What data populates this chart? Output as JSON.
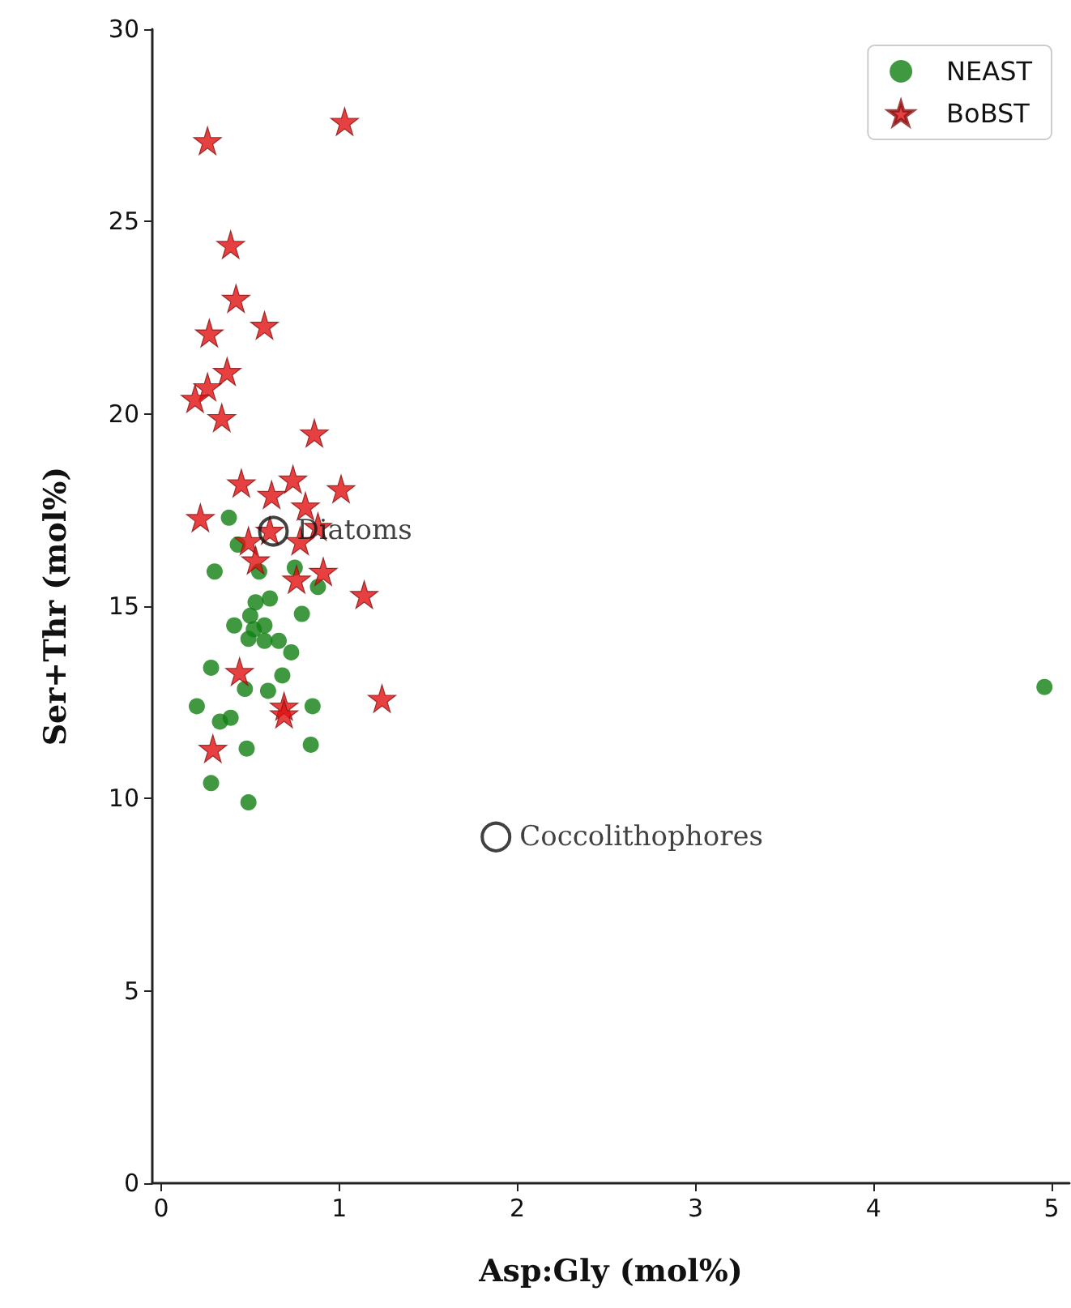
{
  "chart_data": {
    "type": "scatter",
    "xlabel": "Asp:Gly (mol%)",
    "ylabel": "Ser+Thr (mol%)",
    "xlim": [
      -0.05,
      5.1
    ],
    "ylim": [
      0,
      30
    ],
    "xticks": [
      0,
      1,
      2,
      3,
      4,
      5
    ],
    "yticks": [
      0,
      5,
      10,
      15,
      20,
      25,
      30
    ],
    "grid": false,
    "legend": "top right",
    "series": [
      {
        "name": "NEAST",
        "color": "#108010",
        "marker": "circle",
        "x": [
          0.38,
          0.43,
          0.3,
          0.55,
          0.75,
          0.88,
          0.61,
          0.53,
          0.79,
          0.41,
          0.5,
          0.52,
          0.58,
          0.49,
          0.58,
          0.66,
          0.73,
          0.28,
          0.68,
          0.47,
          0.6,
          0.2,
          0.39,
          0.33,
          0.85,
          0.84,
          0.48,
          0.28,
          0.49,
          4.96
        ],
        "values": [
          17.3,
          16.6,
          15.9,
          15.9,
          16.0,
          15.5,
          15.2,
          15.1,
          14.8,
          14.5,
          14.75,
          14.4,
          14.5,
          14.15,
          14.1,
          14.1,
          13.8,
          13.4,
          13.2,
          12.85,
          12.8,
          12.4,
          12.1,
          12.0,
          12.4,
          11.4,
          11.3,
          10.4,
          9.9,
          12.9
        ]
      },
      {
        "name": "BoBST",
        "color": "#e01010",
        "marker": "star",
        "x": [
          0.26,
          1.03,
          0.39,
          0.42,
          0.58,
          0.27,
          0.37,
          0.26,
          0.19,
          0.34,
          0.86,
          0.45,
          0.74,
          1.01,
          0.62,
          0.81,
          0.22,
          0.88,
          0.61,
          0.78,
          0.49,
          0.53,
          0.91,
          0.76,
          1.14,
          0.44,
          1.24,
          0.69,
          0.69,
          0.29
        ],
        "values": [
          27.1,
          27.6,
          24.4,
          23.0,
          22.3,
          22.1,
          21.1,
          20.7,
          20.4,
          19.9,
          19.5,
          18.2,
          18.3,
          18.05,
          17.9,
          17.6,
          17.3,
          17.07,
          16.97,
          16.7,
          16.7,
          16.2,
          15.9,
          15.7,
          15.3,
          13.3,
          12.6,
          12.4,
          12.2,
          11.3
        ]
      }
    ],
    "annotations": [
      {
        "text": "Diatoms",
        "x": 0.63,
        "y": 16.95
      },
      {
        "text": "Coccolithophores",
        "x": 1.88,
        "y": 9.0
      }
    ]
  }
}
